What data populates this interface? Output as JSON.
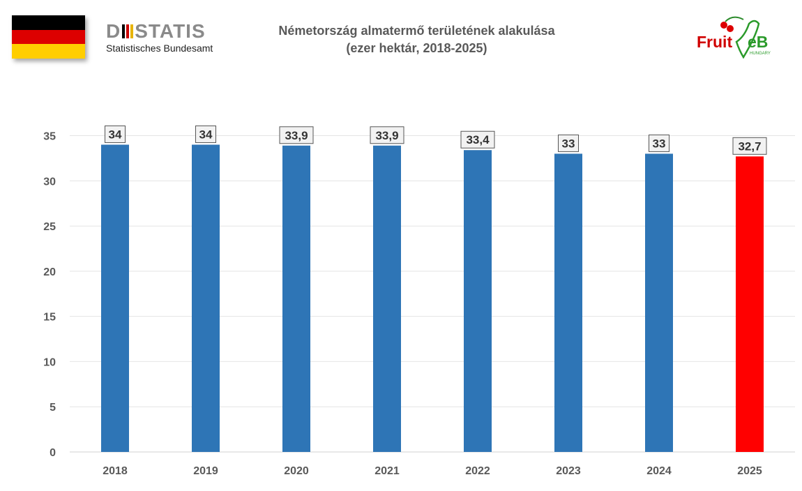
{
  "header": {
    "title_line1": "Németország almatermő területének alakulása",
    "title_line2": "(ezer hektár, 2018-2025)",
    "destatis_logo_text_left": "D",
    "destatis_logo_text_right": "STATIS",
    "destatis_subtitle": "Statistisches Bundesamt",
    "fruitveb_logo_text": "FruitVeB",
    "fruitveb_logo_sub": "HUNGARY"
  },
  "colors": {
    "bar": "#2e75b6",
    "highlight": "#ff0000",
    "flag_black": "#000000",
    "flag_red": "#dd0000",
    "flag_gold": "#ffce00"
  },
  "chart_data": {
    "type": "bar",
    "title": "Németország almatermő területének alakulása (ezer hektár, 2018-2025)",
    "categories": [
      "2018",
      "2019",
      "2020",
      "2021",
      "2022",
      "2023",
      "2024",
      "2025"
    ],
    "values": [
      34,
      34,
      33.9,
      33.9,
      33.4,
      33,
      33,
      32.7
    ],
    "data_labels": [
      "34",
      "34",
      "33,9",
      "33,9",
      "33,4",
      "33",
      "33",
      "32,7"
    ],
    "highlight_index": 7,
    "yticks": [
      0,
      5,
      10,
      15,
      20,
      25,
      30,
      35
    ],
    "ylim": [
      0,
      35
    ],
    "xlabel": "",
    "ylabel": "",
    "grid": true,
    "legend": "none"
  }
}
